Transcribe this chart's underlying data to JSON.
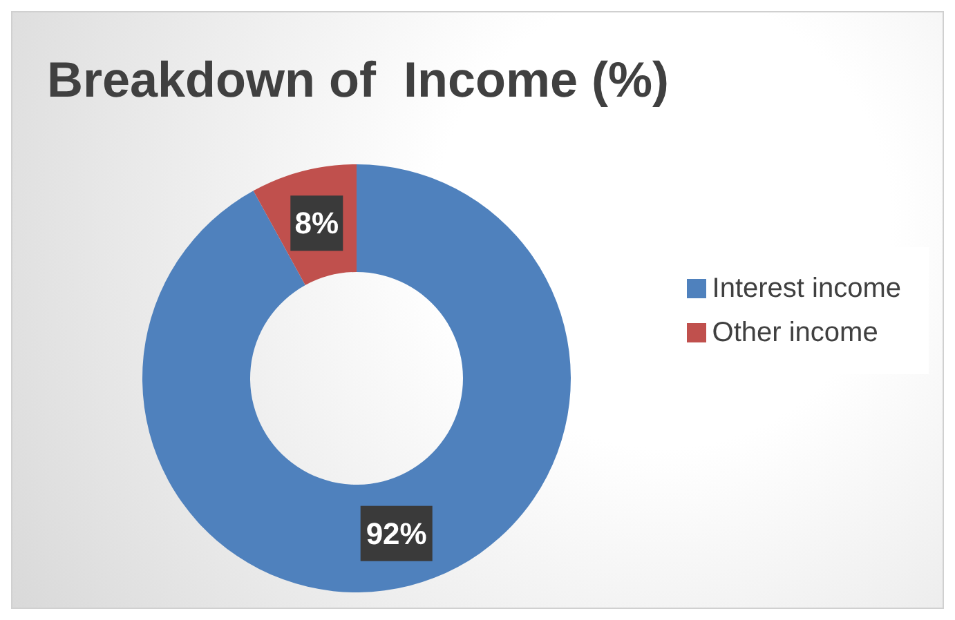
{
  "chart_data": {
    "type": "donut",
    "title": "Breakdown of  Income (%)",
    "categories": [
      "Interest income",
      "Other income"
    ],
    "values": [
      92,
      8
    ],
    "colors": [
      "#4f81bd",
      "#c0504d"
    ],
    "value_labels": [
      "92%",
      "8%"
    ],
    "legend": "right"
  }
}
